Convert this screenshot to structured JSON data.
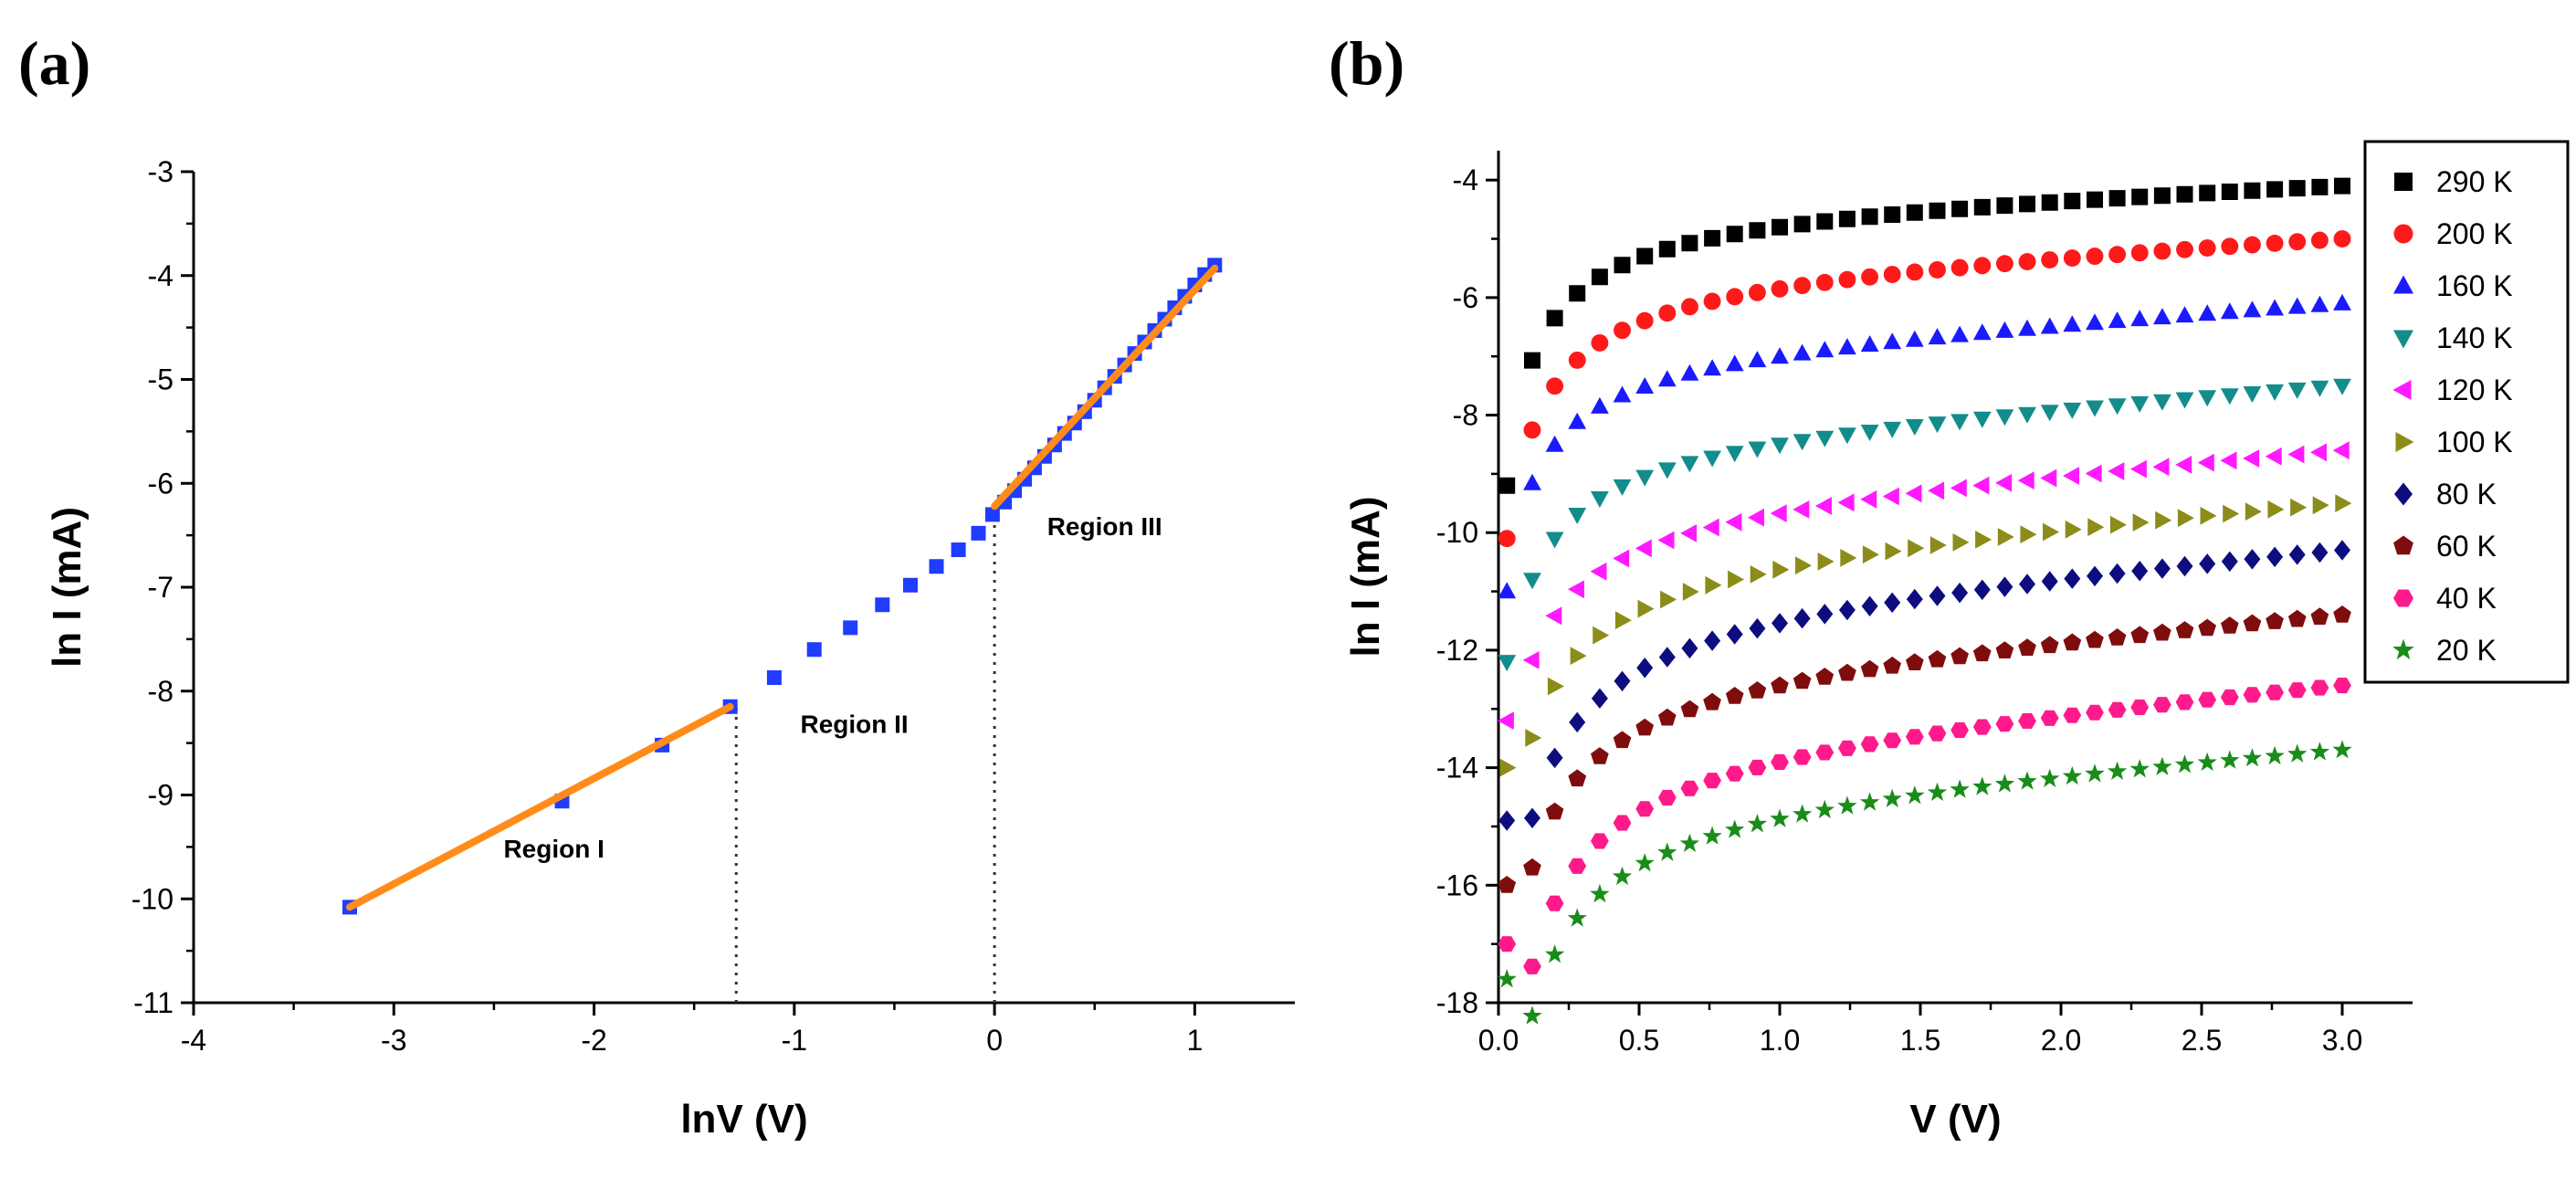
{
  "chart_data": [
    {
      "panel_label": "(a)",
      "type": "scatter",
      "xlabel": "lnV (V)",
      "ylabel": "ln I (mA)",
      "xlim": [
        -4,
        1.5
      ],
      "ylim": [
        -11,
        -3
      ],
      "x_ticks": [
        -4,
        -3,
        -2,
        -1,
        0,
        1
      ],
      "x_tick_labels": [
        "-4",
        "-3",
        "-2",
        "-1",
        "0",
        "1"
      ],
      "y_ticks": [
        -11,
        -10,
        -9,
        -8,
        -7,
        -6,
        -5,
        -4,
        -3
      ],
      "y_tick_labels": [
        "-11",
        "-10",
        "-9",
        "-8",
        "-7",
        "-6",
        "-5",
        "-4",
        "-3"
      ],
      "series": [
        {
          "name": "data",
          "marker": "square",
          "color": "#1f3cff",
          "points": [
            [
              -3.22,
              -10.08
            ],
            [
              -2.16,
              -9.06
            ],
            [
              -1.66,
              -8.52
            ],
            [
              -1.32,
              -8.15
            ],
            [
              -1.1,
              -7.87
            ],
            [
              -0.9,
              -7.6
            ],
            [
              -0.72,
              -7.39
            ],
            [
              -0.56,
              -7.17
            ],
            [
              -0.42,
              -6.98
            ],
            [
              -0.29,
              -6.8
            ],
            [
              -0.18,
              -6.64
            ],
            [
              -0.08,
              -6.48
            ],
            [
              -0.01,
              -6.3
            ],
            [
              0.05,
              -6.18
            ],
            [
              0.1,
              -6.07
            ],
            [
              0.15,
              -5.96
            ],
            [
              0.2,
              -5.85
            ],
            [
              0.25,
              -5.74
            ],
            [
              0.3,
              -5.63
            ],
            [
              0.35,
              -5.52
            ],
            [
              0.4,
              -5.42
            ],
            [
              0.45,
              -5.31
            ],
            [
              0.5,
              -5.2
            ],
            [
              0.55,
              -5.08
            ],
            [
              0.6,
              -4.97
            ],
            [
              0.65,
              -4.86
            ],
            [
              0.7,
              -4.75
            ],
            [
              0.75,
              -4.64
            ],
            [
              0.8,
              -4.53
            ],
            [
              0.85,
              -4.42
            ],
            [
              0.9,
              -4.31
            ],
            [
              0.95,
              -4.2
            ],
            [
              1.0,
              -4.09
            ],
            [
              1.05,
              -3.99
            ],
            [
              1.1,
              -3.9
            ]
          ]
        }
      ],
      "fit_lines": [
        {
          "name": "Region I fit",
          "color": "#ff8c1a",
          "from": [
            -3.22,
            -10.08
          ],
          "to": [
            -1.32,
            -8.15
          ]
        },
        {
          "name": "Region III fit",
          "color": "#ff8c1a",
          "from": [
            0.0,
            -6.22
          ],
          "to": [
            1.1,
            -3.93
          ]
        }
      ],
      "dotted_lines": [
        {
          "x": -1.29,
          "y_from": -11,
          "y_to": -8.15
        },
        {
          "x": 0.0,
          "y_from": -11,
          "y_to": -6.22
        }
      ],
      "annotations": [
        {
          "text": "Region I",
          "x": -2.2,
          "y": -9.6
        },
        {
          "text": "Region II",
          "x": -0.7,
          "y": -8.4
        },
        {
          "text": "Region III",
          "x": 0.55,
          "y": -6.5
        }
      ]
    },
    {
      "panel_label": "(b)",
      "type": "scatter",
      "xlabel": "V (V)",
      "ylabel": "ln I (mA)",
      "xlim": [
        0,
        3.25
      ],
      "ylim": [
        -18,
        -3.5
      ],
      "x_ticks": [
        0,
        0.5,
        1,
        1.5,
        2,
        2.5,
        3
      ],
      "x_tick_labels": [
        "0.0",
        "0.5",
        "1.0",
        "1.5",
        "2.0",
        "2.5",
        "3.0"
      ],
      "y_ticks": [
        -18,
        -16,
        -14,
        -12,
        -10,
        -8,
        -6,
        -4
      ],
      "y_tick_labels": [
        "-18",
        "-16",
        "-14",
        "-12",
        "-10",
        "-8",
        "-6",
        "-4"
      ],
      "x_values": [
        0.03,
        0.12,
        0.2,
        0.28,
        0.36,
        0.44,
        0.52,
        0.6,
        0.68,
        0.76,
        0.84,
        0.92,
        1.0,
        1.08,
        1.16,
        1.24,
        1.32,
        1.4,
        1.48,
        1.56,
        1.64,
        1.72,
        1.8,
        1.88,
        1.96,
        2.04,
        2.12,
        2.2,
        2.28,
        2.36,
        2.44,
        2.52,
        2.6,
        2.68,
        2.76,
        2.84,
        2.92,
        3.0
      ],
      "curve_model": "y = y_end - a*(3.0 - x) - b/(x + 0.1), first point given separately",
      "series": [
        {
          "name": "290 K",
          "marker": "square",
          "color": "#000000",
          "y_first": -9.2,
          "y_end": -4.1,
          "a": 0.18,
          "b": 0.58
        },
        {
          "name": "200 K",
          "marker": "circle",
          "color": "#ff1a1a",
          "y_first": -10.1,
          "y_end": -5.0,
          "a": 0.25,
          "b": 0.6
        },
        {
          "name": "160 K",
          "marker": "triangle-up",
          "color": "#1a1aff",
          "y_first": -11.0,
          "y_end": -6.1,
          "a": 0.3,
          "b": 0.52
        },
        {
          "name": "140 K",
          "marker": "triangle-down",
          "color": "#138c8c",
          "y_first": -12.2,
          "y_end": -7.5,
          "a": 0.34,
          "b": 0.55
        },
        {
          "name": "120 K",
          "marker": "triangle-left",
          "color": "#ff1aff",
          "y_first": -13.2,
          "y_end": -8.6,
          "a": 0.36,
          "b": 0.6
        },
        {
          "name": "100 K",
          "marker": "triangle-right",
          "color": "#8c8c1a",
          "y_first": -14.0,
          "y_end": -9.5,
          "a": 0.36,
          "b": 0.7
        },
        {
          "name": "80  K",
          "marker": "diamond",
          "color": "#0d0d80",
          "y_first": -14.9,
          "y_end": -10.3,
          "a": 0.38,
          "b": 0.82
        },
        {
          "name": "60  K",
          "marker": "pentagon",
          "color": "#800d0d",
          "y_first": -16.0,
          "y_end": -11.4,
          "a": 0.38,
          "b": 0.76
        },
        {
          "name": "40  K",
          "marker": "hexagon",
          "color": "#ff1a8c",
          "y_first": -17.0,
          "y_end": -12.6,
          "a": 0.4,
          "b": 0.86
        },
        {
          "name": "20  K",
          "marker": "star",
          "color": "#1a8c1a",
          "y_first": -17.6,
          "y_end": -13.7,
          "a": 0.34,
          "b": 0.84
        }
      ],
      "legend_placement": "top-right"
    }
  ]
}
